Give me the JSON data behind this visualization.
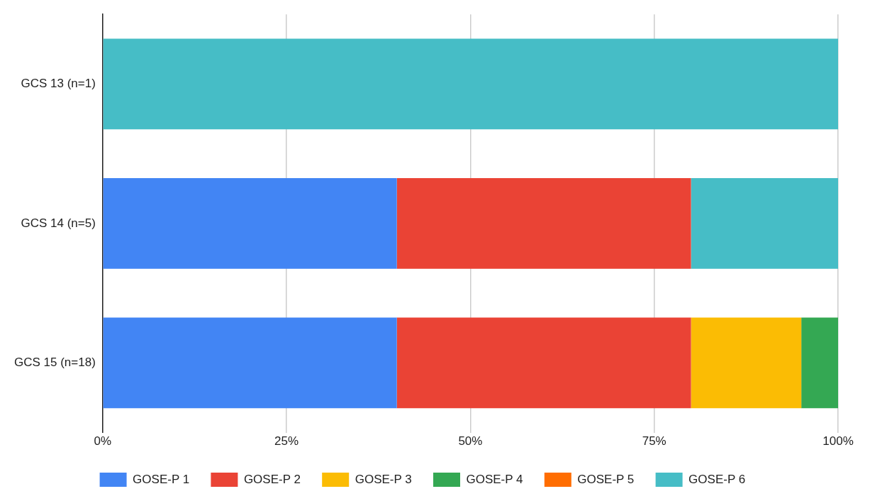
{
  "chart_data": {
    "type": "bar",
    "orientation": "horizontal",
    "stacked": true,
    "categories": [
      "GCS 13 (n=1)",
      "GCS 14 (n=5)",
      "GCS 15 (n=18)"
    ],
    "series": [
      {
        "name": "GOSE-P 1",
        "color": "#4285f4",
        "values": [
          0,
          40,
          40
        ]
      },
      {
        "name": "GOSE-P 2",
        "color": "#ea4335",
        "values": [
          0,
          40,
          40
        ]
      },
      {
        "name": "GOSE-P 3",
        "color": "#fbbc04",
        "values": [
          0,
          0,
          15
        ]
      },
      {
        "name": "GOSE-P 4",
        "color": "#34a853",
        "values": [
          0,
          0,
          5
        ]
      },
      {
        "name": "GOSE-P 5",
        "color": "#ff6d01",
        "values": [
          0,
          0,
          0
        ]
      },
      {
        "name": "GOSE-P 6",
        "color": "#46bdc6",
        "values": [
          100,
          20,
          0
        ]
      }
    ],
    "xlim": [
      0,
      100
    ],
    "xticks": [
      {
        "value": 0,
        "label": "0%"
      },
      {
        "value": 25,
        "label": "25%"
      },
      {
        "value": 50,
        "label": "50%"
      },
      {
        "value": 75,
        "label": "75%"
      },
      {
        "value": 100,
        "label": "100%"
      }
    ],
    "grid": "x",
    "legend": "bottom"
  }
}
